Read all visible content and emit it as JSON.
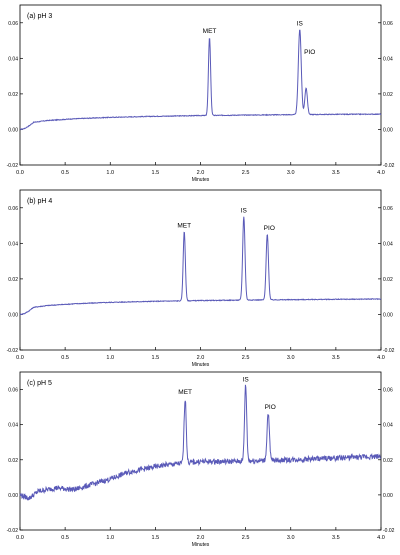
{
  "chart_data": [
    {
      "type": "line",
      "title": "(a) pH 3",
      "xlabel": "Minutes",
      "xlim": [
        0.0,
        4.0
      ],
      "ylim": [
        -0.02,
        0.07
      ],
      "xticks": [
        "0.0",
        "0.5",
        "1.0",
        "1.5",
        "2.0",
        "2.5",
        "3.0",
        "3.5",
        "4.0"
      ],
      "yticks": [
        "-0.02",
        "0.00",
        "0.02",
        "0.04",
        "0.06"
      ],
      "color": "#5a5ab8",
      "baseline": [
        [
          0.0,
          0.0
        ],
        [
          0.05,
          0.0005
        ],
        [
          0.1,
          0.002
        ],
        [
          0.15,
          0.004
        ],
        [
          0.3,
          0.005
        ],
        [
          0.6,
          0.006
        ],
        [
          1.0,
          0.0068
        ],
        [
          1.5,
          0.0074
        ],
        [
          2.0,
          0.0078
        ],
        [
          2.5,
          0.0081
        ],
        [
          3.0,
          0.0083
        ],
        [
          3.5,
          0.0085
        ],
        [
          4.0,
          0.0086
        ]
      ],
      "noise": 0.0002,
      "peaks": [
        {
          "label": "MET",
          "x": 2.1,
          "height": 0.044,
          "width": 0.012
        },
        {
          "label": "IS",
          "x": 3.1,
          "height": 0.048,
          "width": 0.016
        },
        {
          "label": "PIO",
          "x": 3.17,
          "height": 0.015,
          "width": 0.014
        }
      ]
    },
    {
      "type": "line",
      "title": "(b) pH 4",
      "xlabel": "Minutes",
      "xlim": [
        0.0,
        4.0
      ],
      "ylim": [
        -0.02,
        0.07
      ],
      "xticks": [
        "0.0",
        "0.5",
        "1.0",
        "1.5",
        "2.0",
        "2.5",
        "3.0",
        "3.5",
        "4.0"
      ],
      "yticks": [
        "-0.02",
        "0.00",
        "0.02",
        "0.04",
        "0.06"
      ],
      "color": "#5a5ab8",
      "baseline": [
        [
          0.0,
          0.0
        ],
        [
          0.05,
          0.0005
        ],
        [
          0.1,
          0.002
        ],
        [
          0.15,
          0.004
        ],
        [
          0.3,
          0.005
        ],
        [
          0.6,
          0.006
        ],
        [
          1.0,
          0.0068
        ],
        [
          1.5,
          0.0074
        ],
        [
          2.0,
          0.0078
        ],
        [
          2.5,
          0.0081
        ],
        [
          3.0,
          0.0083
        ],
        [
          3.5,
          0.0085
        ],
        [
          4.0,
          0.0087
        ]
      ],
      "noise": 0.0002,
      "peaks": [
        {
          "label": "MET",
          "x": 1.82,
          "height": 0.039,
          "width": 0.012
        },
        {
          "label": "IS",
          "x": 2.48,
          "height": 0.047,
          "width": 0.013
        },
        {
          "label": "PIO",
          "x": 2.74,
          "height": 0.037,
          "width": 0.013
        }
      ]
    },
    {
      "type": "line",
      "title": "(c) pH 5",
      "xlabel": "Minutes",
      "xlim": [
        0.0,
        4.0
      ],
      "ylim": [
        -0.02,
        0.07
      ],
      "xticks": [
        "0.0",
        "0.5",
        "1.0",
        "1.5",
        "2.0",
        "2.5",
        "3.0",
        "3.5",
        "4.0"
      ],
      "yticks": [
        "-0.02",
        "0.00",
        "0.02",
        "0.04",
        "0.06"
      ],
      "color": "#5a5ab8",
      "baseline": [
        [
          0.0,
          0.0
        ],
        [
          0.1,
          -0.002
        ],
        [
          0.2,
          0.002
        ],
        [
          0.4,
          0.004
        ],
        [
          0.6,
          0.003
        ],
        [
          0.8,
          0.006
        ],
        [
          1.0,
          0.009
        ],
        [
          1.2,
          0.013
        ],
        [
          1.4,
          0.015
        ],
        [
          1.6,
          0.017
        ],
        [
          1.8,
          0.018
        ],
        [
          2.0,
          0.019
        ],
        [
          2.3,
          0.019
        ],
        [
          2.6,
          0.0195
        ],
        [
          3.0,
          0.02
        ],
        [
          3.5,
          0.021
        ],
        [
          4.0,
          0.022
        ]
      ],
      "noise": 0.0015,
      "peaks": [
        {
          "label": "MET",
          "x": 1.83,
          "height": 0.037,
          "width": 0.012
        },
        {
          "label": "IS",
          "x": 2.5,
          "height": 0.043,
          "width": 0.012
        },
        {
          "label": "PIO",
          "x": 2.75,
          "height": 0.027,
          "width": 0.013
        }
      ]
    }
  ]
}
